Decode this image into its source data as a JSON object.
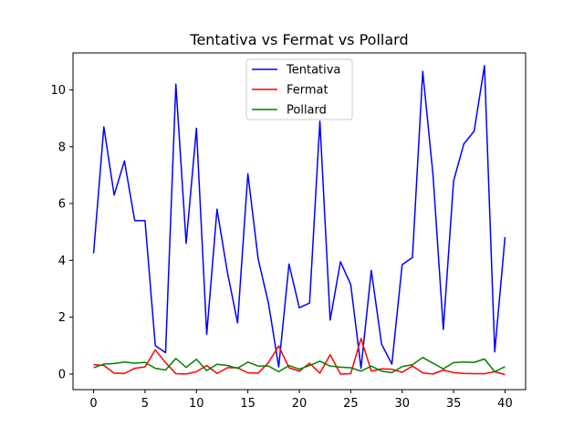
{
  "chart_data": {
    "type": "line",
    "title": "Tentativa vs Fermat vs Pollard",
    "xlabel": "",
    "ylabel": "",
    "xlim": [
      -2,
      42
    ],
    "ylim": [
      -0.55,
      11.3
    ],
    "xticks": [
      0,
      5,
      10,
      15,
      20,
      25,
      30,
      35,
      40
    ],
    "yticks": [
      0,
      2,
      4,
      6,
      8,
      10
    ],
    "legend": "top-center",
    "grid": false,
    "x": [
      0,
      1,
      2,
      3,
      4,
      5,
      6,
      7,
      8,
      9,
      10,
      11,
      12,
      13,
      14,
      15,
      16,
      17,
      18,
      19,
      20,
      21,
      22,
      23,
      24,
      25,
      26,
      27,
      28,
      29,
      30,
      31,
      32,
      33,
      34,
      35,
      36,
      37,
      38,
      39,
      40
    ],
    "series": [
      {
        "name": "Tentativa",
        "color": "#0000ff",
        "values": [
          4.25,
          8.7,
          6.3,
          7.5,
          5.4,
          5.4,
          1.0,
          0.75,
          10.2,
          4.6,
          8.65,
          1.4,
          5.8,
          3.6,
          1.8,
          7.05,
          4.05,
          2.5,
          0.25,
          3.87,
          2.33,
          2.5,
          8.9,
          1.9,
          3.95,
          3.15,
          0.2,
          3.65,
          1.05,
          0.35,
          3.85,
          4.1,
          10.65,
          7.0,
          1.57,
          6.8,
          8.1,
          8.55,
          10.85,
          0.78,
          4.82
        ]
      },
      {
        "name": "Fermat",
        "color": "#ff0000",
        "values": [
          0.33,
          0.3,
          0.03,
          0.02,
          0.2,
          0.25,
          0.85,
          0.4,
          0.01,
          0.0,
          0.08,
          0.3,
          0.02,
          0.22,
          0.22,
          0.04,
          0.03,
          0.4,
          0.99,
          0.22,
          0.1,
          0.38,
          0.03,
          0.68,
          0.0,
          0.01,
          1.25,
          0.1,
          0.18,
          0.17,
          0.06,
          0.28,
          0.04,
          0.0,
          0.14,
          0.05,
          0.02,
          0.01,
          0.01,
          0.08,
          -0.02
        ]
      },
      {
        "name": "Pollard",
        "color": "#008000",
        "values": [
          0.22,
          0.35,
          0.37,
          0.42,
          0.38,
          0.41,
          0.2,
          0.14,
          0.55,
          0.23,
          0.52,
          0.12,
          0.34,
          0.3,
          0.2,
          0.42,
          0.28,
          0.28,
          0.08,
          0.3,
          0.17,
          0.3,
          0.45,
          0.28,
          0.24,
          0.22,
          0.1,
          0.28,
          0.1,
          0.05,
          0.26,
          0.33,
          0.58,
          0.38,
          0.18,
          0.4,
          0.42,
          0.41,
          0.53,
          0.08,
          0.26
        ]
      }
    ]
  }
}
